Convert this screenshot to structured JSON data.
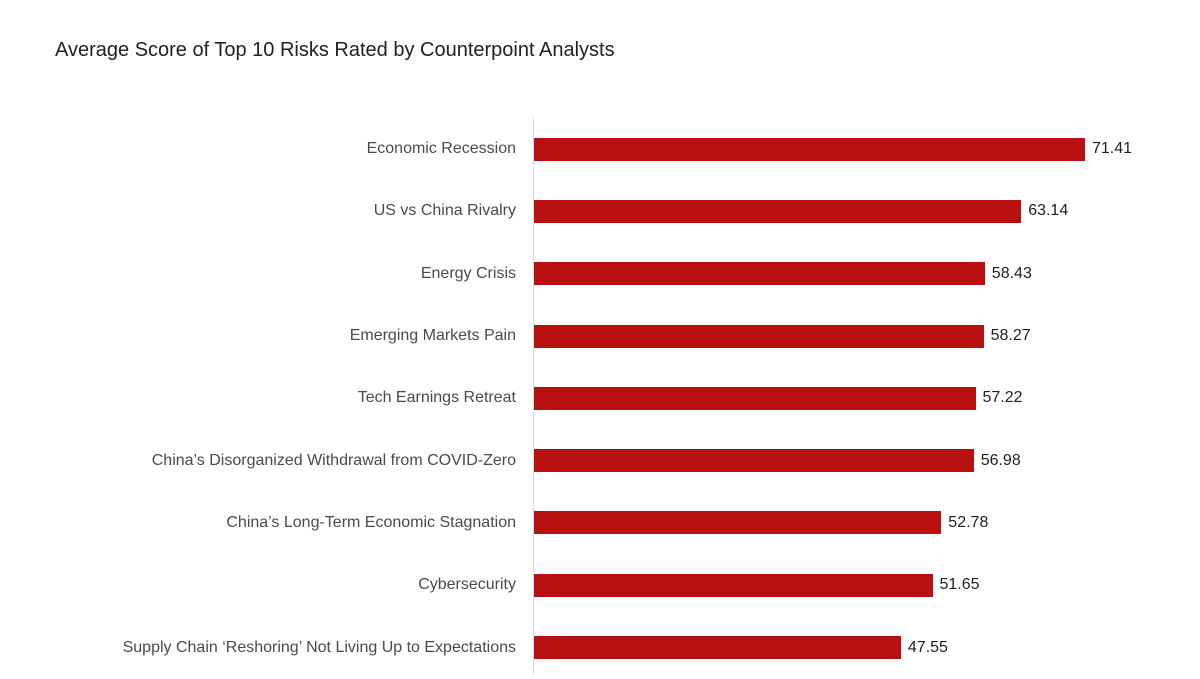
{
  "title": "Average Score of Top 10 Risks Rated by Counterpoint Analysts",
  "chart_data": {
    "type": "bar",
    "orientation": "horizontal",
    "title": "Average Score of Top 10 Risks Rated by Counterpoint Analysts",
    "categories": [
      "Economic Recession",
      "US vs China Rivalry",
      "Energy Crisis",
      "Emerging Markets Pain",
      "Tech Earnings Retreat",
      "China’s Disorganized Withdrawal from COVID-Zero",
      "China’s Long-Term Economic Stagnation",
      "Cybersecurity",
      "Supply Chain ‘Reshoring’ Not Living Up to Expectations"
    ],
    "values": [
      71.41,
      63.14,
      58.43,
      58.27,
      57.22,
      56.98,
      52.78,
      51.65,
      47.55
    ],
    "data_labels": [
      "71.41",
      "63.14",
      "58.43",
      "58.27",
      "57.22",
      "56.98",
      "52.78",
      "51.65",
      "47.55"
    ],
    "xlabel": "",
    "ylabel": "",
    "xlim": [
      0,
      71.41
    ],
    "grid": false,
    "legend": "none",
    "colors": {
      "bar": "#b80f10",
      "axis_line": "#dadce0",
      "category_label": "#4a4a4a",
      "value_label": "#1f1f1f",
      "title": "#212121",
      "background": "#ffffff"
    }
  }
}
